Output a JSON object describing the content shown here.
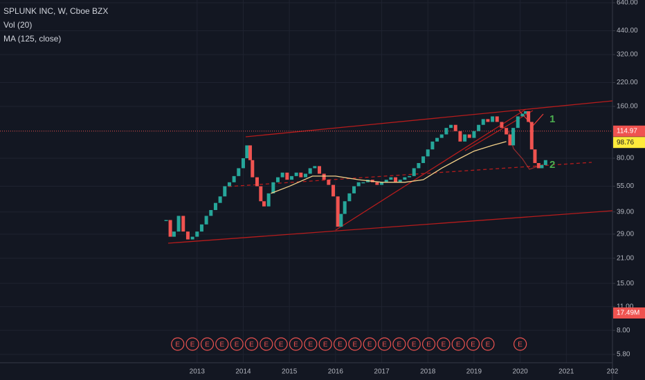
{
  "chart_data": {
    "type": "candlestick",
    "title": "SPLUNK INC, W, Cboe BZX",
    "indicators": [
      "Vol (20)",
      "MA (125, close)"
    ],
    "log_scale": true,
    "grid": true,
    "xlim": [
      2008.73,
      2022.0
    ],
    "ylim": [
      5.19,
      664
    ],
    "xticks": [
      2013,
      2014,
      2015,
      2016,
      2017,
      2018,
      2019,
      2020,
      2021,
      {
        "value": 2022,
        "label": "202"
      }
    ],
    "yticks": [
      {
        "value": 5.8,
        "label": "5.80"
      },
      {
        "value": 8,
        "label": "8.00"
      },
      {
        "value": 11,
        "label": "11.00"
      },
      {
        "value": 15,
        "label": "15.00"
      },
      {
        "value": 21,
        "label": "21.00"
      },
      {
        "value": 29,
        "label": "29.00"
      },
      {
        "value": 39,
        "label": "39.00"
      },
      {
        "value": 55,
        "label": "55.00"
      },
      {
        "value": 80,
        "label": "80.00"
      },
      {
        "value": 160,
        "label": "160.00"
      },
      {
        "value": 220,
        "label": "220.00"
      },
      {
        "value": 320,
        "label": "320.00"
      },
      {
        "value": 440,
        "label": "440.00"
      },
      {
        "value": 640,
        "label": "640.00"
      }
    ],
    "up_color": "#26a69a",
    "down_color": "#ef5350",
    "x": [
      2012.33,
      2012.42,
      2012.5,
      2012.6,
      2012.7,
      2012.8,
      2012.9,
      2013.0,
      2013.1,
      2013.2,
      2013.3,
      2013.4,
      2013.5,
      2013.6,
      2013.7,
      2013.8,
      2013.9,
      2014.0,
      2014.08,
      2014.15,
      2014.2,
      2014.3,
      2014.38,
      2014.45,
      2014.55,
      2014.65,
      2014.75,
      2014.85,
      2014.95,
      2015.05,
      2015.15,
      2015.25,
      2015.35,
      2015.45,
      2015.55,
      2015.65,
      2015.75,
      2015.85,
      2015.95,
      2016.05,
      2016.12,
      2016.2,
      2016.3,
      2016.4,
      2016.5,
      2016.6,
      2016.7,
      2016.8,
      2016.9,
      2017.0,
      2017.1,
      2017.2,
      2017.3,
      2017.4,
      2017.5,
      2017.6,
      2017.7,
      2017.8,
      2017.9,
      2018.0,
      2018.1,
      2018.2,
      2018.3,
      2018.4,
      2018.5,
      2018.6,
      2018.7,
      2018.8,
      2018.9,
      2019.0,
      2019.1,
      2019.2,
      2019.3,
      2019.4,
      2019.5,
      2019.6,
      2019.7,
      2019.78,
      2019.85,
      2019.95,
      2020.05,
      2020.12,
      2020.18,
      2020.25,
      2020.32,
      2020.4,
      2020.47,
      2020.55
    ],
    "values": [
      35,
      28,
      30,
      37,
      30,
      27,
      28,
      30,
      33,
      37,
      40,
      44,
      48,
      55,
      58,
      63,
      70,
      80,
      95,
      78,
      62,
      55,
      45,
      42,
      50,
      58,
      62,
      66,
      60,
      63,
      66,
      62,
      65,
      70,
      72,
      65,
      60,
      56,
      48,
      32,
      38,
      45,
      50,
      55,
      58,
      58,
      60,
      58,
      56,
      58,
      60,
      62,
      58,
      60,
      62,
      63,
      70,
      75,
      82,
      90,
      100,
      105,
      110,
      120,
      125,
      115,
      100,
      110,
      105,
      115,
      125,
      135,
      130,
      140,
      130,
      120,
      110,
      95,
      120,
      140,
      145,
      150,
      130,
      90,
      75,
      70,
      73,
      78
    ],
    "ma": {
      "color": "#f5d28a",
      "x": [
        2014.6,
        2015.0,
        2015.5,
        2016.0,
        2016.5,
        2017.0,
        2017.5,
        2017.9,
        2018.3,
        2018.7,
        2019.0,
        2019.4,
        2019.7
      ],
      "values": [
        50,
        55,
        63,
        63,
        60,
        58,
        58,
        60,
        70,
        80,
        88,
        95,
        100
      ]
    },
    "ma_last": 98.76,
    "price_line": {
      "value": 114.97,
      "label": "114.97"
    },
    "volume_label": "17.49M",
    "earnings": {
      "label": "E",
      "x": [
        2012.58,
        2012.9,
        2013.22,
        2013.54,
        2013.86,
        2014.18,
        2014.5,
        2014.82,
        2015.14,
        2015.46,
        2015.78,
        2016.1,
        2016.42,
        2016.74,
        2017.06,
        2017.38,
        2017.7,
        2018.02,
        2018.34,
        2018.66,
        2018.98,
        2019.3,
        2020.0
      ]
    },
    "annotations": [
      "1",
      "2"
    ]
  }
}
